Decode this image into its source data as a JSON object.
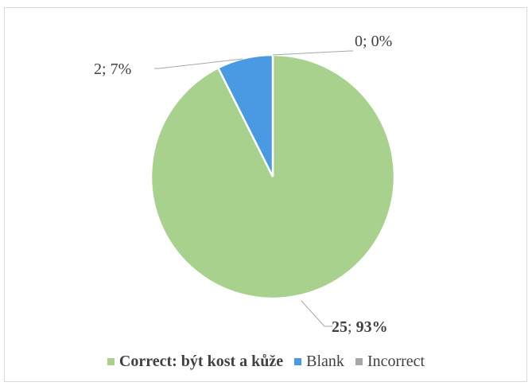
{
  "chart_data": {
    "type": "pie",
    "title": "",
    "series": [
      {
        "values": [
          25,
          2,
          0
        ],
        "categories": [
          "Correct: být kost a kůže",
          "Blank",
          "Incorrect"
        ],
        "percent_labels": [
          "25; 93%",
          "2; 7%",
          "0; 0%"
        ],
        "value_label_parts": [
          [
            "25",
            "; ",
            "93%"
          ],
          [
            "2",
            "; ",
            "7%"
          ],
          [
            "0",
            "; ",
            "0%"
          ]
        ],
        "colors": [
          "#a9d18e",
          "#4a9ae3",
          "#a6a6a6"
        ]
      }
    ],
    "legend": {
      "position": "bottom",
      "entries": [
        "Correct: být kost a kůže",
        "Blank",
        "Incorrect"
      ]
    }
  }
}
